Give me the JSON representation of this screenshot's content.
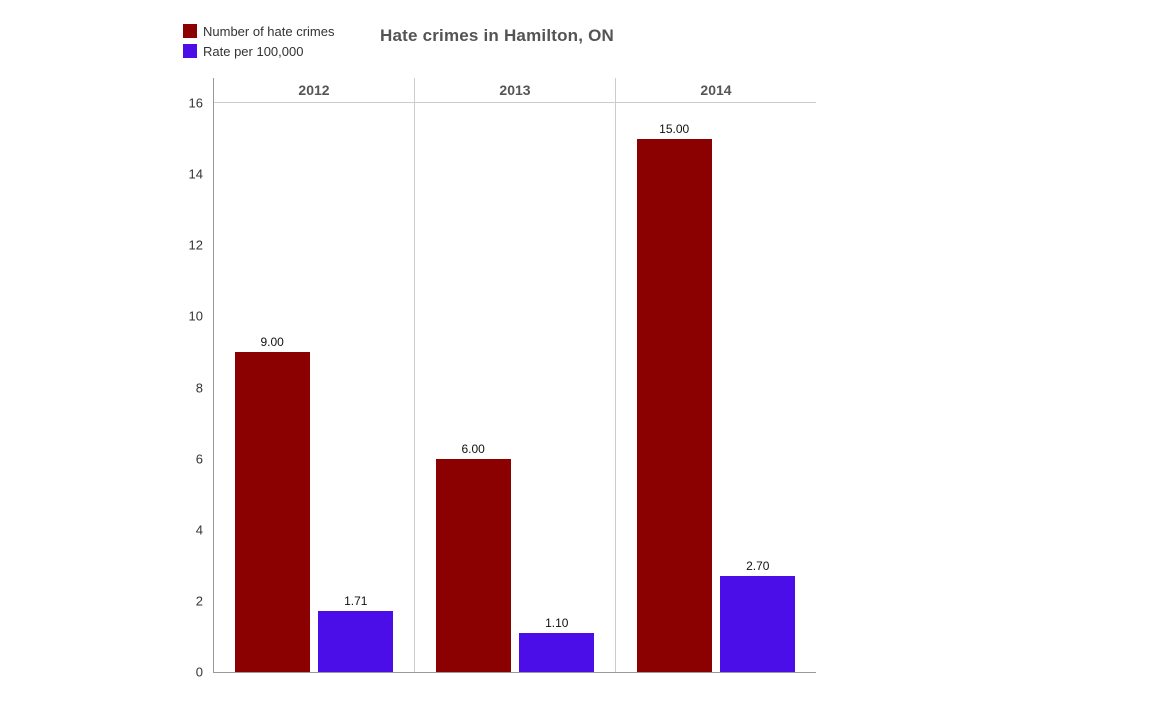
{
  "title": "Hate crimes in Hamilton, ON",
  "legend": {
    "items": [
      {
        "label": "Number of hate crimes",
        "color": "#8b0000"
      },
      {
        "label": "Rate per 100,000",
        "color": "#4b0de8"
      }
    ]
  },
  "chart_data": {
    "type": "bar",
    "title": "Hate crimes in Hamilton, ON",
    "categories": [
      "2012",
      "2013",
      "2014"
    ],
    "series": [
      {
        "name": "Number of hate crimes",
        "color": "#8b0000",
        "values": [
          9.0,
          6.0,
          15.0
        ],
        "labels": [
          "9.00",
          "6.00",
          "15.00"
        ]
      },
      {
        "name": "Rate per 100,000",
        "color": "#4b0de8",
        "values": [
          1.71,
          1.1,
          2.7
        ],
        "labels": [
          "1.71",
          "1.10",
          "2.70"
        ]
      }
    ],
    "ylim": [
      0,
      16
    ],
    "ytick_step": 2,
    "grid": false,
    "legend_position": "top-left"
  }
}
